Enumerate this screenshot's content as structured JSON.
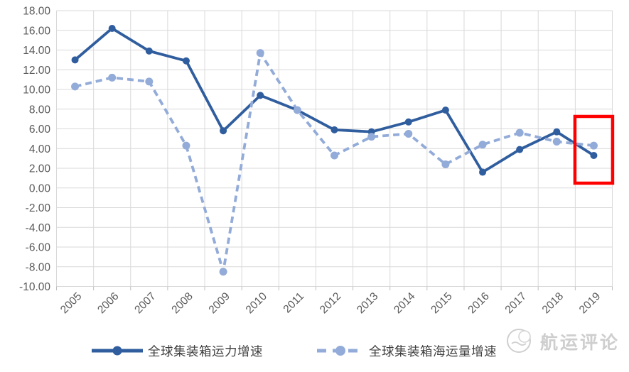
{
  "chart_data": {
    "type": "line",
    "title": "",
    "xlabel": "",
    "ylabel": "",
    "categories": [
      "2005",
      "2006",
      "2007",
      "2008",
      "2009",
      "2010",
      "2011",
      "2012",
      "2013",
      "2014",
      "2015",
      "2016",
      "2017",
      "2018",
      "2019"
    ],
    "series": [
      {
        "name": "全球集装箱运力增速",
        "line_style": "solid",
        "marker": "circle",
        "color": "#2F5D9E",
        "values": [
          13.0,
          16.2,
          13.9,
          12.9,
          5.8,
          9.4,
          7.9,
          5.9,
          5.7,
          6.7,
          7.9,
          1.6,
          3.9,
          5.7,
          3.3
        ]
      },
      {
        "name": "全球集装箱海运量增速",
        "line_style": "dashed",
        "marker": "circle",
        "color": "#92ABD8",
        "values": [
          10.3,
          11.2,
          10.8,
          4.3,
          -8.5,
          13.7,
          7.9,
          3.3,
          5.2,
          5.5,
          2.4,
          4.4,
          5.6,
          4.7,
          4.3
        ]
      }
    ],
    "ylim": [
      -10,
      18
    ],
    "ytick_step": 2,
    "y_tick_labels": [
      "18.00",
      "16.00",
      "14.00",
      "12.00",
      "10.00",
      "8.00",
      "6.00",
      "4.00",
      "2.00",
      "0.00",
      "-2.00",
      "-4.00",
      "-6.00",
      "-8.00",
      "-10.00"
    ],
    "grid": true,
    "legend_position": "bottom",
    "highlight": {
      "category": "2019",
      "shape": "rectangle",
      "color": "#FF0000",
      "note": "red box highlighting the 2019 data points of both series"
    }
  },
  "legend": {
    "items": [
      {
        "label": "全球集装箱运力增速"
      },
      {
        "label": "全球集装箱海运量增速"
      }
    ]
  },
  "watermark": {
    "text": "航运评论"
  },
  "colors": {
    "grid": "#D9D9D9",
    "tick": "#BFBFBF",
    "axis_text": "#595959",
    "legend_text": "#3F3F3F",
    "watermark": "#C9C9C9",
    "background": "#FFFFFF"
  }
}
